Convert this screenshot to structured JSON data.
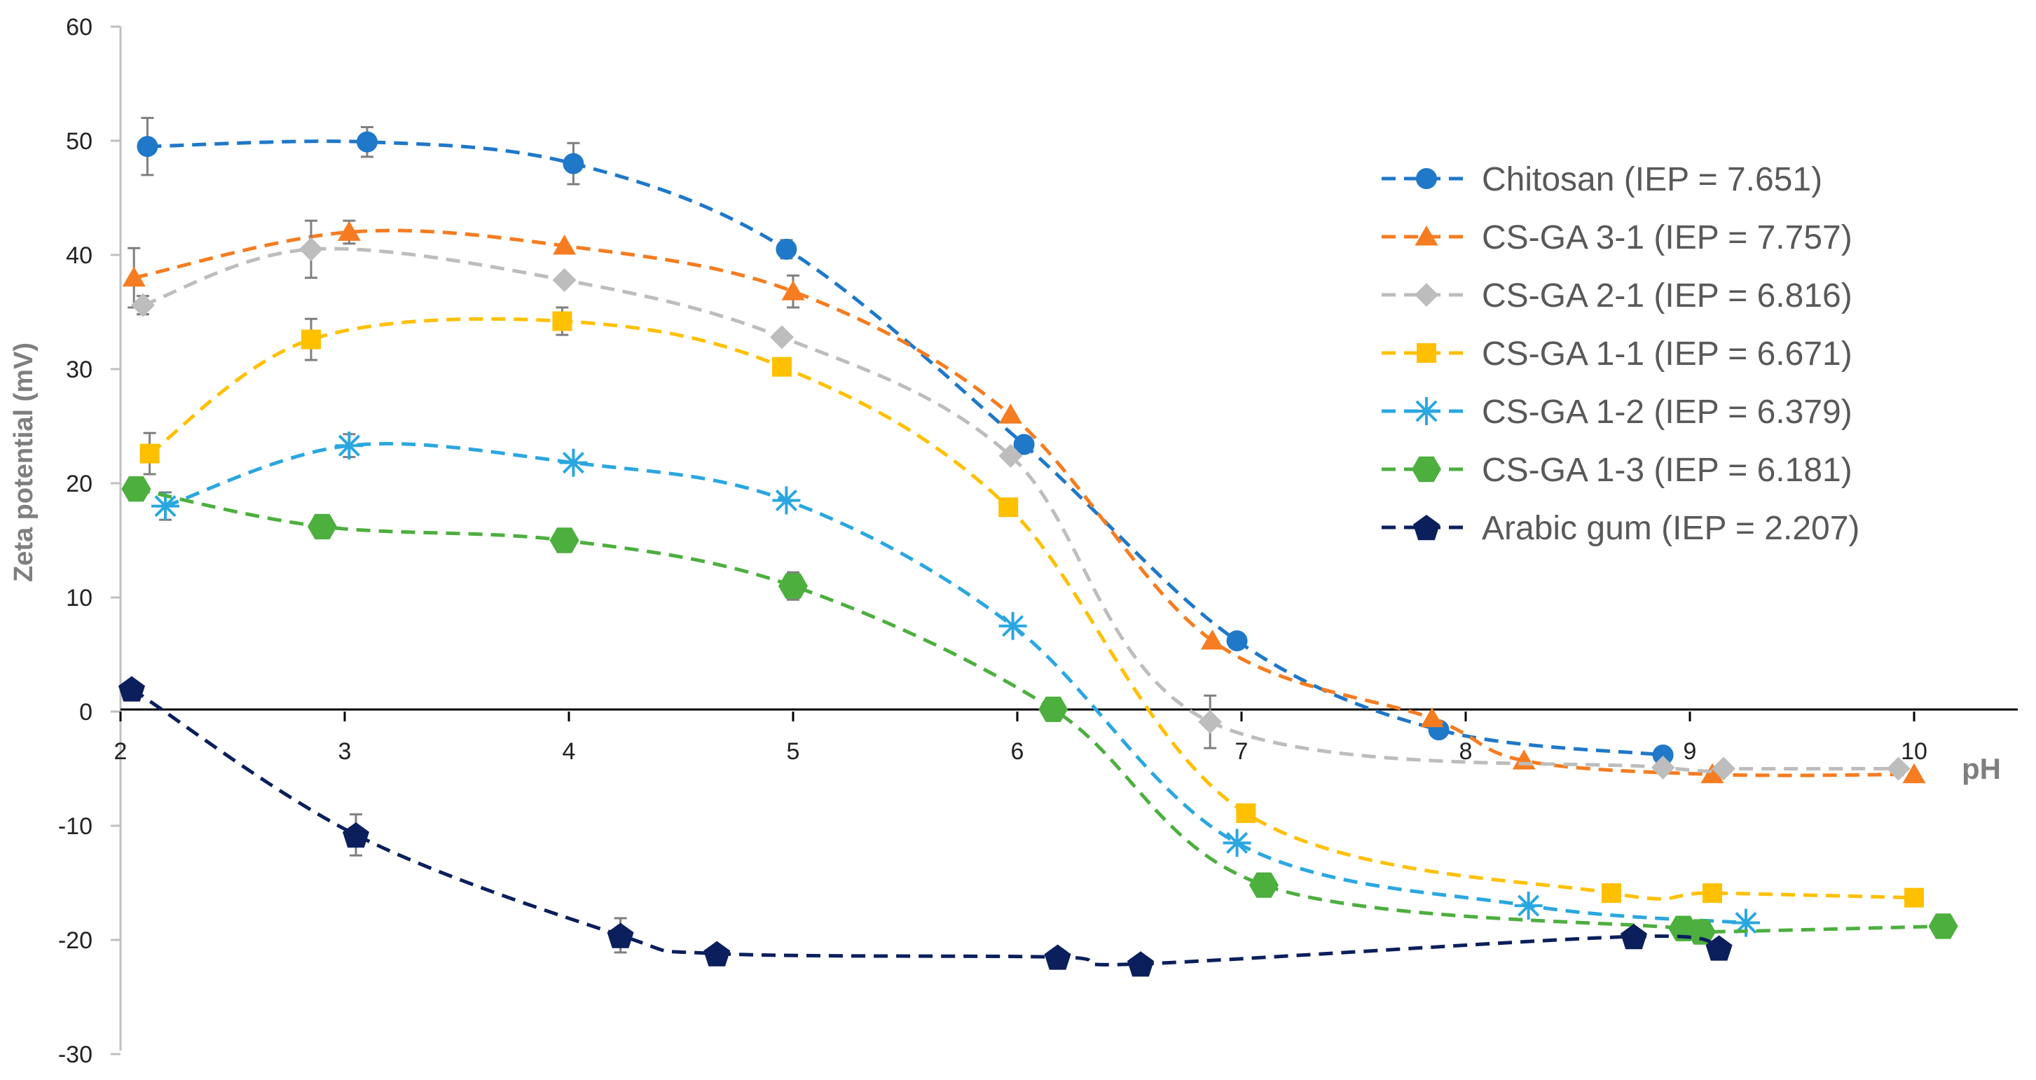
{
  "chart_data": {
    "type": "line",
    "title": "",
    "xlabel": "pH",
    "ylabel": "Zeta potential (mV)",
    "xlim": [
      2,
      10.5
    ],
    "ylim": [
      -30,
      60
    ],
    "xticks": [
      2,
      3,
      4,
      5,
      6,
      7,
      8,
      9,
      10
    ],
    "yticks": [
      -30,
      -20,
      -10,
      0,
      10,
      20,
      30,
      40,
      50,
      60
    ],
    "legend_position": "top-right",
    "series": [
      {
        "name": "Chitosan (IEP = 7.651)",
        "color": "#1f78c8",
        "marker": "circle",
        "points": [
          [
            2.12,
            49.5
          ],
          [
            3.1,
            49.9
          ],
          [
            4.02,
            48
          ],
          [
            4.97,
            40.5
          ],
          [
            6.03,
            23.4
          ],
          [
            6.98,
            6.2
          ],
          [
            7.88,
            -1.6
          ],
          [
            8.88,
            -3.8
          ]
        ],
        "errors": [
          2.5,
          1.3,
          1.8,
          0.8,
          0.5,
          0.5,
          0.5,
          0.5
        ]
      },
      {
        "name": "CS-GA 3-1 (IEP = 7.757)",
        "color": "#f57c20",
        "marker": "triangle",
        "points": [
          [
            2.06,
            38
          ],
          [
            3.02,
            42
          ],
          [
            3.98,
            40.8
          ],
          [
            5.0,
            36.8
          ],
          [
            5.97,
            26
          ],
          [
            6.87,
            6.2
          ],
          [
            7.85,
            -0.6
          ],
          [
            8.26,
            -4.3
          ],
          [
            9.1,
            -5.5
          ],
          [
            10.0,
            -5.5
          ]
        ],
        "errors": [
          2.6,
          1,
          0.5,
          1.4,
          0.5,
          0.5,
          0.5,
          0.5,
          0.5,
          0.5
        ]
      },
      {
        "name": "CS-GA 2-1 (IEP = 6.816)",
        "color": "#bdbdbd",
        "marker": "diamond",
        "points": [
          [
            2.1,
            35.6
          ],
          [
            2.85,
            40.5
          ],
          [
            3.98,
            37.8
          ],
          [
            4.95,
            32.8
          ],
          [
            5.97,
            22.4
          ],
          [
            6.86,
            -0.9
          ],
          [
            8.88,
            -4.9
          ],
          [
            9.15,
            -5
          ],
          [
            9.93,
            -5
          ]
        ],
        "errors": [
          0.8,
          2.5,
          0.6,
          0.5,
          0.5,
          2.3,
          0.5,
          0.5,
          0.5
        ]
      },
      {
        "name": "CS-GA 1-1 (IEP = 6.671)",
        "color": "#ffc000",
        "marker": "square",
        "points": [
          [
            2.13,
            22.6
          ],
          [
            2.85,
            32.6
          ],
          [
            3.97,
            34.2
          ],
          [
            4.95,
            30.2
          ],
          [
            5.96,
            17.9
          ],
          [
            7.02,
            -8.9
          ],
          [
            8.65,
            -15.9
          ],
          [
            9.1,
            -15.9
          ],
          [
            10.0,
            -16.3
          ]
        ],
        "errors": [
          1.8,
          1.8,
          1.2,
          0.5,
          0.5,
          0.5,
          0.5,
          0.5,
          0.5
        ]
      },
      {
        "name": "CS-GA 1-2 (IEP = 6.379)",
        "color": "#2aa7e0",
        "marker": "asterisk",
        "points": [
          [
            2.2,
            18
          ],
          [
            3.02,
            23.3
          ],
          [
            4.02,
            21.8
          ],
          [
            4.97,
            18.5
          ],
          [
            5.98,
            7.5
          ],
          [
            6.98,
            -11.5
          ],
          [
            8.28,
            -17
          ],
          [
            9.25,
            -18.5
          ]
        ],
        "errors": [
          1.2,
          1,
          0.5,
          0.5,
          0.5,
          0.5,
          0.5,
          0.5
        ]
      },
      {
        "name": "CS-GA 1-3 (IEP = 6.181)",
        "color": "#4caf3e",
        "marker": "hexagon",
        "points": [
          [
            2.07,
            19.5
          ],
          [
            2.9,
            16.2
          ],
          [
            3.98,
            15
          ],
          [
            5.0,
            11
          ],
          [
            6.16,
            0.2
          ],
          [
            7.1,
            -15.2
          ],
          [
            8.97,
            -19
          ],
          [
            9.05,
            -19.3
          ],
          [
            10.13,
            -18.8
          ]
        ],
        "errors": [
          0.5,
          0.5,
          0.5,
          1.2,
          0.5,
          0.5,
          0.5,
          0.5,
          0.5
        ]
      },
      {
        "name": "Arabic gum (IEP = 2.207)",
        "color": "#0a1f5c",
        "marker": "pentagon",
        "points": [
          [
            2.05,
            2
          ],
          [
            3.05,
            -10.8
          ],
          [
            4.23,
            -19.6
          ],
          [
            4.66,
            -21.2
          ],
          [
            6.18,
            -21.5
          ],
          [
            6.55,
            -22.1
          ],
          [
            8.75,
            -19.7
          ],
          [
            9.13,
            -20.7
          ]
        ],
        "errors": [
          0.5,
          1.8,
          1.5,
          0.5,
          0.5,
          0.5,
          0.5,
          0.5
        ]
      }
    ]
  }
}
